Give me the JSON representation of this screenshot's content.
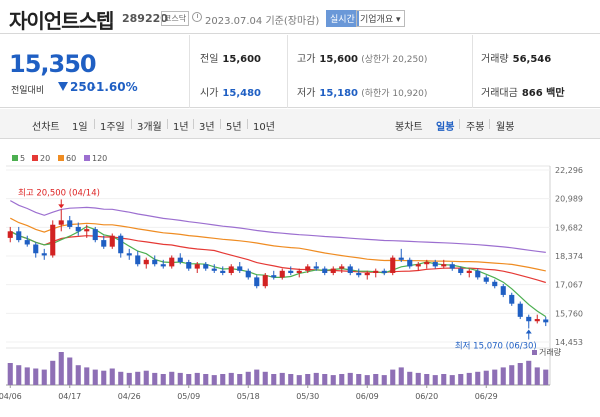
{
  "header": {
    "name": "자이언트스텝",
    "code": "289220",
    "market": "코스닥",
    "date": "2023.07.04",
    "date_suffix": "기준(장마감)",
    "live_btn": "실시간",
    "corp_btn": "기업개요 ▾"
  },
  "price": {
    "current": "15,350",
    "change_label": "전일대비",
    "change": "250",
    "change_pct": "-1.60%",
    "prev_label": "전일",
    "prev": "15,600",
    "open_label": "시가",
    "open": "15,480",
    "high_label": "고가",
    "high": "15,600",
    "high_sub": "(상한가 20,250)",
    "low_label": "저가",
    "low": "15,180",
    "low_sub": "(하한가 10,920)",
    "volume_label": "거래량",
    "volume": "56,546",
    "amount_label": "거래대금",
    "amount": "866 백만"
  },
  "periods": {
    "chart_label": "선차트",
    "items": [
      "1일",
      "1주일",
      "3개월",
      "1년",
      "3년",
      "5년",
      "10년"
    ],
    "candle_label": "봉차트",
    "candle_items": [
      "일봉",
      "주봉",
      "월봉"
    ],
    "active_candle": "일봉"
  },
  "colors": {
    "up": "#d22222",
    "down": "#1f5fc3",
    "ma5": "#4caf50",
    "ma20": "#e53935",
    "ma60": "#ef8c22",
    "ma120": "#9c6fd0",
    "volume": "#8e6fb5"
  },
  "chart_data": {
    "type": "candlestick",
    "legend": [
      {
        "name": "5",
        "color": "#4caf50"
      },
      {
        "name": "20",
        "color": "#e53935"
      },
      {
        "name": "60",
        "color": "#ef8c22"
      },
      {
        "name": "120",
        "color": "#9c6fd0"
      }
    ],
    "y_ticks": [
      22296,
      20989,
      19682,
      18374,
      17067,
      15760,
      14453
    ],
    "ylim": [
      14453,
      22296
    ],
    "x_labels": [
      "04/06",
      "04/17",
      "04/26",
      "05/09",
      "05/18",
      "05/30",
      "06/09",
      "06/20",
      "06/29"
    ],
    "max_annotation": "최고 20,500 (04/14)",
    "min_annotation": "최저 15,070 (06/30)",
    "volume_label": "거래량",
    "candles": [
      [
        19200,
        19700,
        19000,
        19500
      ],
      [
        19500,
        19700,
        19000,
        19100
      ],
      [
        19100,
        19300,
        18800,
        18900
      ],
      [
        18900,
        19000,
        18300,
        18500
      ],
      [
        18500,
        18700,
        18200,
        18400
      ],
      [
        18400,
        20000,
        18300,
        19800
      ],
      [
        19800,
        20500,
        19500,
        20000
      ],
      [
        20000,
        20200,
        19600,
        19700
      ],
      [
        19700,
        19900,
        19300,
        19500
      ],
      [
        19500,
        19800,
        19200,
        19600
      ],
      [
        19600,
        19700,
        19000,
        19100
      ],
      [
        19100,
        19300,
        18700,
        18800
      ],
      [
        18800,
        19400,
        18700,
        19300
      ],
      [
        19300,
        19400,
        18300,
        18500
      ],
      [
        18500,
        18700,
        18200,
        18400
      ],
      [
        18400,
        18600,
        17900,
        18000
      ],
      [
        18000,
        18300,
        17800,
        18200
      ],
      [
        18200,
        18400,
        17900,
        18000
      ],
      [
        18000,
        18200,
        17800,
        17900
      ],
      [
        17900,
        18400,
        17800,
        18300
      ],
      [
        18300,
        18500,
        18000,
        18100
      ],
      [
        18100,
        18200,
        17700,
        17800
      ],
      [
        17800,
        18100,
        17600,
        18000
      ],
      [
        18000,
        18100,
        17700,
        17800
      ],
      [
        17800,
        18000,
        17600,
        17700
      ],
      [
        17700,
        17900,
        17500,
        17600
      ],
      [
        17600,
        18000,
        17500,
        17900
      ],
      [
        17900,
        18100,
        17600,
        17700
      ],
      [
        17700,
        17800,
        17300,
        17400
      ],
      [
        17400,
        17500,
        16900,
        17000
      ],
      [
        17000,
        17600,
        16900,
        17500
      ],
      [
        17500,
        17700,
        17300,
        17400
      ],
      [
        17400,
        17800,
        17300,
        17700
      ],
      [
        17700,
        17900,
        17500,
        17600
      ],
      [
        17600,
        17800,
        17400,
        17700
      ],
      [
        17700,
        18000,
        17600,
        17900
      ],
      [
        17900,
        18100,
        17700,
        17800
      ],
      [
        17800,
        17900,
        17500,
        17600
      ],
      [
        17600,
        17900,
        17500,
        17800
      ],
      [
        17800,
        18000,
        17600,
        17900
      ],
      [
        17900,
        18000,
        17500,
        17600
      ],
      [
        17600,
        17800,
        17400,
        17500
      ],
      [
        17500,
        17700,
        17300,
        17600
      ],
      [
        17600,
        17800,
        17400,
        17700
      ],
      [
        17700,
        17800,
        17500,
        17600
      ],
      [
        17600,
        18400,
        17500,
        18300
      ],
      [
        18300,
        18700,
        18100,
        18200
      ],
      [
        18200,
        18300,
        17800,
        17900
      ],
      [
        17900,
        18100,
        17700,
        18000
      ],
      [
        18000,
        18200,
        17800,
        18100
      ],
      [
        18100,
        18200,
        17800,
        17900
      ],
      [
        17900,
        18200,
        17800,
        18000
      ],
      [
        18000,
        18100,
        17700,
        17800
      ],
      [
        17800,
        17900,
        17500,
        17600
      ],
      [
        17600,
        17800,
        17400,
        17700
      ],
      [
        17700,
        17800,
        17300,
        17400
      ],
      [
        17400,
        17500,
        17100,
        17200
      ],
      [
        17200,
        17300,
        16900,
        17000
      ],
      [
        17000,
        17100,
        16500,
        16600
      ],
      [
        16600,
        16700,
        16100,
        16200
      ],
      [
        16200,
        16300,
        15500,
        15600
      ],
      [
        15600,
        15700,
        15070,
        15400
      ],
      [
        15400,
        15700,
        15300,
        15500
      ],
      [
        15480,
        15600,
        15180,
        15350
      ]
    ],
    "volumes": [
      20,
      18,
      16,
      15,
      14,
      22,
      30,
      25,
      18,
      16,
      14,
      13,
      15,
      12,
      11,
      12,
      13,
      11,
      10,
      12,
      11,
      10,
      11,
      10,
      9,
      10,
      11,
      10,
      12,
      14,
      12,
      10,
      11,
      10,
      9,
      10,
      11,
      10,
      9,
      10,
      11,
      10,
      9,
      10,
      9,
      14,
      16,
      12,
      11,
      10,
      9,
      10,
      9,
      10,
      11,
      12,
      13,
      14,
      16,
      18,
      20,
      22,
      16,
      14
    ]
  }
}
